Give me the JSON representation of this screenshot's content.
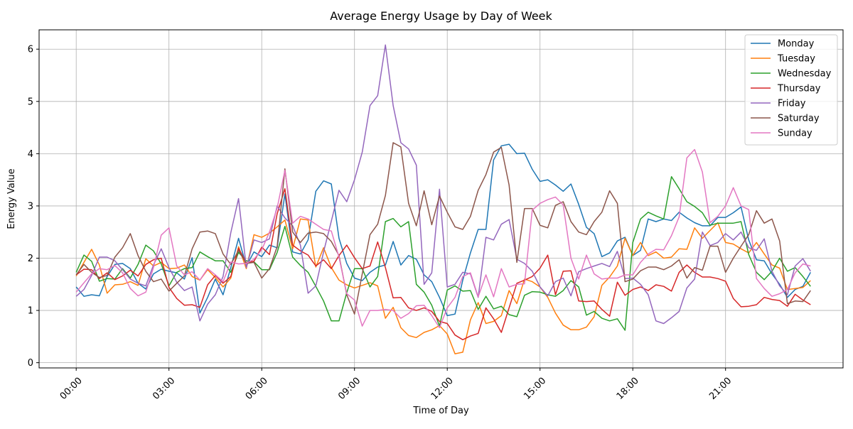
{
  "chart_data": {
    "type": "line",
    "title": "Average Energy Usage by Day of Week",
    "xlabel": "Time of Day",
    "ylabel": "Energy Value",
    "x_unit": "hours",
    "xlim": [
      -1.2,
      24.8
    ],
    "ylim": [
      -0.1,
      6.37
    ],
    "x_ticks": [
      0,
      3,
      6,
      9,
      12,
      15,
      18,
      21
    ],
    "x_tick_labels": [
      "00:00",
      "03:00",
      "06:00",
      "09:00",
      "12:00",
      "15:00",
      "18:00",
      "21:00"
    ],
    "y_ticks": [
      0,
      1,
      2,
      3,
      4,
      5,
      6
    ],
    "y_tick_labels": [
      "0",
      "1",
      "2",
      "3",
      "4",
      "5",
      "6"
    ],
    "grid": true,
    "legend_position": "top-right",
    "x": [
      0,
      0.25,
      0.5,
      0.75,
      1,
      1.25,
      1.5,
      1.75,
      2,
      2.25,
      2.5,
      2.75,
      3,
      3.25,
      3.5,
      3.75,
      4,
      4.25,
      4.5,
      4.75,
      5,
      5.25,
      5.5,
      5.75,
      6,
      6.25,
      6.5,
      6.75,
      7,
      7.25,
      7.5,
      7.75,
      8,
      8.25,
      8.5,
      8.75,
      9,
      9.25,
      9.5,
      9.75,
      10,
      10.25,
      10.5,
      10.75,
      11,
      11.25,
      11.5,
      11.75,
      12,
      12.25,
      12.5,
      12.75,
      13,
      13.25,
      13.5,
      13.75,
      14,
      14.25,
      14.5,
      14.75,
      15,
      15.25,
      15.5,
      15.75,
      16,
      16.25,
      16.5,
      16.75,
      17,
      17.25,
      17.5,
      17.75,
      18,
      18.25,
      18.5,
      18.75,
      19,
      19.25,
      19.5,
      19.75,
      20,
      20.25,
      20.5,
      20.75,
      21,
      21.25,
      21.5,
      21.75,
      22,
      22.25,
      22.5,
      22.75,
      23,
      23.25,
      23.5,
      23.75
    ],
    "series": [
      {
        "name": "Monday",
        "color": "#1f77b4",
        "values": [
          1.45,
          1.27,
          1.3,
          1.28,
          1.65,
          1.88,
          1.9,
          1.8,
          1.52,
          1.41,
          1.7,
          1.79,
          1.75,
          1.72,
          1.6,
          2.01,
          0.95,
          1.25,
          1.6,
          1.3,
          1.82,
          2.38,
          1.85,
          2.12,
          2.03,
          2.25,
          2.2,
          3.23,
          2.12,
          2.08,
          2.35,
          3.28,
          3.48,
          3.42,
          2.38,
          1.9,
          1.62,
          1.57,
          1.73,
          1.83,
          1.87,
          2.32,
          1.87,
          2.05,
          1.98,
          1.68,
          1.55,
          1.25,
          0.9,
          0.93,
          1.58,
          2.1,
          2.55,
          2.55,
          3.88,
          4.15,
          4.18,
          4.0,
          4.01,
          3.7,
          3.47,
          3.5,
          3.4,
          3.28,
          3.42,
          3.03,
          2.59,
          2.47,
          2.03,
          2.1,
          2.33,
          2.4,
          2.05,
          2.15,
          2.75,
          2.7,
          2.75,
          2.72,
          2.88,
          2.77,
          2.68,
          2.62,
          2.62,
          2.78,
          2.78,
          2.87,
          2.98,
          2.35,
          1.97,
          1.95,
          1.7,
          1.5,
          1.25,
          1.4,
          1.46,
          1.73
        ]
      },
      {
        "name": "Tuesday",
        "color": "#ff7f0e",
        "values": [
          1.66,
          1.92,
          2.17,
          1.87,
          1.33,
          1.49,
          1.5,
          1.55,
          1.48,
          1.99,
          1.85,
          1.92,
          1.8,
          1.81,
          1.87,
          1.65,
          1.58,
          1.78,
          1.63,
          1.45,
          1.62,
          2.22,
          1.8,
          2.45,
          2.4,
          2.48,
          2.6,
          2.73,
          2.18,
          2.75,
          2.73,
          1.83,
          2.2,
          1.82,
          1.58,
          1.49,
          1.43,
          1.48,
          1.53,
          1.47,
          0.85,
          1.06,
          0.67,
          0.52,
          0.48,
          0.58,
          0.63,
          0.71,
          0.55,
          0.17,
          0.2,
          0.82,
          1.15,
          0.75,
          0.79,
          0.9,
          1.38,
          1.13,
          1.6,
          1.55,
          1.45,
          1.25,
          0.95,
          0.72,
          0.63,
          0.63,
          0.68,
          0.88,
          1.48,
          1.64,
          1.85,
          2.38,
          2.05,
          2.3,
          2.05,
          2.12,
          2.0,
          2.02,
          2.18,
          2.17,
          2.58,
          2.38,
          2.53,
          2.68,
          2.3,
          2.27,
          2.18,
          2.1,
          2.3,
          2.08,
          1.87,
          1.81,
          1.4,
          1.42,
          1.44,
          1.57
        ]
      },
      {
        "name": "Wednesday",
        "color": "#2ca02c",
        "values": [
          1.73,
          2.06,
          1.94,
          1.56,
          1.61,
          1.6,
          1.8,
          1.62,
          1.88,
          2.25,
          2.14,
          1.89,
          1.47,
          1.73,
          1.8,
          1.82,
          2.12,
          2.03,
          1.95,
          1.95,
          1.73,
          2.11,
          1.95,
          1.93,
          1.78,
          1.78,
          2.11,
          2.61,
          2.02,
          1.86,
          1.73,
          1.46,
          1.18,
          0.8,
          0.8,
          1.34,
          1.8,
          1.8,
          1.45,
          1.65,
          2.7,
          2.76,
          2.6,
          2.7,
          1.5,
          1.35,
          1.1,
          0.7,
          1.39,
          1.47,
          1.37,
          1.38,
          1.02,
          1.27,
          1.03,
          1.08,
          0.92,
          0.88,
          1.29,
          1.36,
          1.35,
          1.3,
          1.27,
          1.38,
          1.57,
          1.45,
          0.91,
          0.98,
          0.85,
          0.8,
          0.84,
          0.62,
          2.3,
          2.75,
          2.88,
          2.81,
          2.75,
          3.56,
          3.33,
          3.08,
          2.99,
          2.87,
          2.63,
          2.67,
          2.67,
          2.67,
          2.7,
          2.07,
          1.73,
          1.59,
          1.75,
          2.0,
          1.75,
          1.82,
          1.65,
          1.46
        ]
      },
      {
        "name": "Thursday",
        "color": "#d62728",
        "values": [
          1.68,
          1.79,
          1.78,
          1.61,
          1.72,
          1.59,
          1.66,
          1.77,
          1.66,
          1.88,
          1.97,
          2.0,
          1.44,
          1.23,
          1.1,
          1.11,
          1.06,
          1.49,
          1.67,
          1.52,
          1.65,
          2.19,
          1.91,
          1.94,
          2.21,
          2.07,
          2.85,
          3.33,
          2.25,
          2.14,
          2.06,
          1.85,
          1.97,
          1.8,
          2.05,
          2.25,
          2.01,
          1.8,
          1.85,
          2.31,
          1.82,
          1.24,
          1.25,
          1.05,
          1.0,
          1.05,
          0.98,
          0.79,
          0.75,
          0.53,
          0.44,
          0.51,
          0.56,
          1.05,
          0.84,
          0.58,
          1.05,
          1.52,
          1.58,
          1.65,
          1.81,
          2.06,
          1.3,
          1.75,
          1.76,
          1.18,
          1.17,
          1.18,
          1.02,
          0.89,
          1.54,
          1.29,
          1.4,
          1.45,
          1.38,
          1.49,
          1.46,
          1.37,
          1.73,
          1.87,
          1.73,
          1.64,
          1.64,
          1.61,
          1.56,
          1.23,
          1.07,
          1.08,
          1.11,
          1.25,
          1.21,
          1.19,
          1.08,
          1.31,
          1.2,
          1.11
        ]
      },
      {
        "name": "Friday",
        "color": "#9467bd",
        "values": [
          1.27,
          1.4,
          1.67,
          2.02,
          2.02,
          1.95,
          1.78,
          1.6,
          1.52,
          1.47,
          1.87,
          2.18,
          1.82,
          1.54,
          1.38,
          1.45,
          0.8,
          1.12,
          1.3,
          1.65,
          2.49,
          3.14,
          1.82,
          2.35,
          2.3,
          2.37,
          3.0,
          2.77,
          2.62,
          2.25,
          1.33,
          1.47,
          2.12,
          2.71,
          3.3,
          3.08,
          3.5,
          4.03,
          4.92,
          5.11,
          6.08,
          4.92,
          4.21,
          4.09,
          3.78,
          1.5,
          1.72,
          3.32,
          1.45,
          1.5,
          1.73,
          1.7,
          1.25,
          2.4,
          2.35,
          2.65,
          2.74,
          1.98,
          1.9,
          1.75,
          1.45,
          1.28,
          1.55,
          1.62,
          1.28,
          1.74,
          1.8,
          1.85,
          1.9,
          1.84,
          2.13,
          1.61,
          1.62,
          1.5,
          1.3,
          0.8,
          0.75,
          0.86,
          0.98,
          1.43,
          1.6,
          2.5,
          2.24,
          2.3,
          2.47,
          2.35,
          2.5,
          2.2,
          2.15,
          2.37,
          1.75,
          1.47,
          1.3,
          1.85,
          1.99,
          1.75
        ]
      },
      {
        "name": "Saturday",
        "color": "#8c564b",
        "values": [
          1.68,
          1.88,
          1.73,
          1.63,
          1.67,
          2.02,
          2.2,
          2.47,
          2.05,
          1.75,
          1.55,
          1.6,
          1.37,
          1.52,
          1.66,
          2.18,
          2.5,
          2.52,
          2.47,
          2.08,
          1.88,
          2.15,
          1.9,
          1.92,
          1.62,
          1.8,
          2.22,
          3.71,
          2.5,
          2.3,
          2.48,
          2.5,
          2.47,
          2.32,
          2.05,
          1.3,
          0.93,
          1.7,
          2.45,
          2.65,
          3.2,
          4.21,
          4.13,
          3.05,
          2.62,
          3.29,
          2.64,
          3.19,
          2.88,
          2.6,
          2.55,
          2.8,
          3.3,
          3.6,
          4.03,
          4.12,
          3.4,
          1.92,
          2.95,
          2.95,
          2.63,
          2.58,
          3.01,
          3.08,
          2.7,
          2.5,
          2.45,
          2.7,
          2.88,
          3.29,
          3.05,
          1.55,
          1.6,
          1.76,
          1.83,
          1.83,
          1.78,
          1.85,
          1.97,
          1.62,
          1.82,
          1.77,
          2.23,
          2.23,
          1.73,
          2.0,
          2.23,
          2.45,
          2.91,
          2.67,
          2.75,
          2.33,
          1.13,
          1.18,
          1.17,
          1.38
        ]
      },
      {
        "name": "Sunday",
        "color": "#e377c2",
        "values": [
          1.35,
          1.53,
          1.7,
          1.8,
          1.78,
          1.86,
          1.72,
          1.42,
          1.28,
          1.35,
          1.82,
          2.44,
          2.58,
          1.85,
          1.68,
          1.74,
          1.58,
          1.8,
          1.68,
          1.55,
          1.93,
          1.89,
          1.9,
          1.98,
          2.16,
          2.5,
          2.96,
          3.68,
          2.67,
          2.8,
          2.75,
          2.65,
          2.55,
          2.52,
          2.02,
          1.32,
          1.2,
          0.7,
          1.0,
          1.0,
          1.02,
          1.0,
          0.85,
          0.94,
          1.09,
          1.1,
          0.9,
          0.67,
          1.05,
          1.25,
          1.65,
          1.72,
          1.26,
          1.68,
          1.26,
          1.8,
          1.45,
          1.5,
          1.51,
          2.92,
          3.05,
          3.12,
          3.17,
          3.02,
          2.0,
          1.6,
          2.06,
          1.7,
          1.6,
          1.62,
          1.62,
          1.68,
          1.68,
          1.92,
          2.08,
          2.17,
          2.16,
          2.43,
          2.79,
          3.92,
          4.08,
          3.65,
          2.68,
          2.8,
          3.0,
          3.35,
          3.0,
          2.93,
          1.61,
          1.42,
          1.27,
          1.32,
          1.4,
          1.72,
          1.89,
          1.85
        ]
      }
    ]
  }
}
